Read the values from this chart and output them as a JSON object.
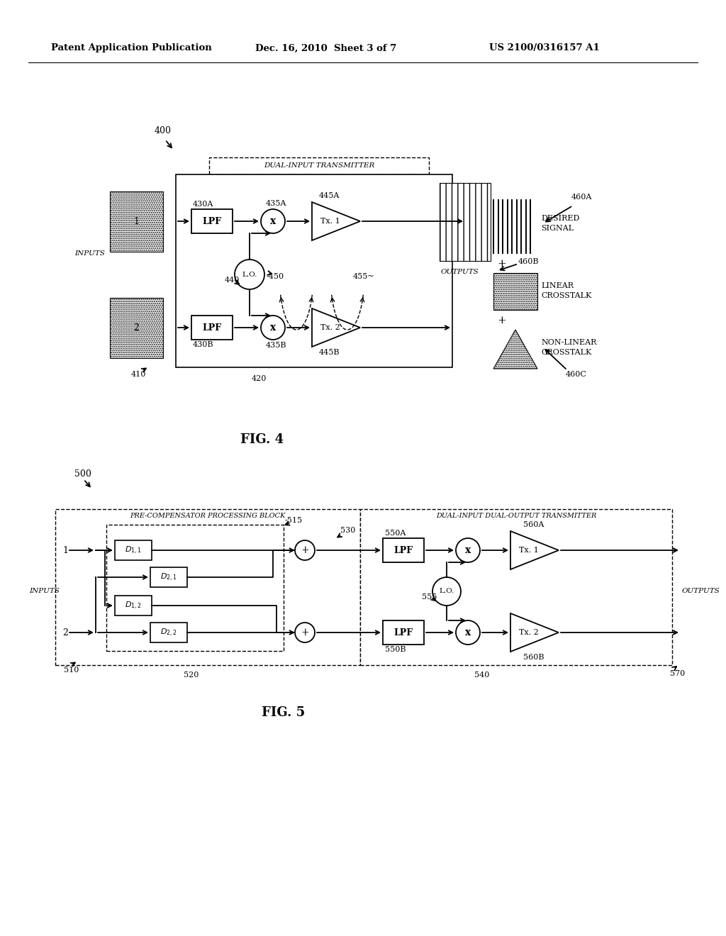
{
  "bg": "#ffffff",
  "header_left": "Patent Application Publication",
  "header_mid": "Dec. 16, 2010  Sheet 3 of 7",
  "header_right": "US 2100/0316157 A1"
}
